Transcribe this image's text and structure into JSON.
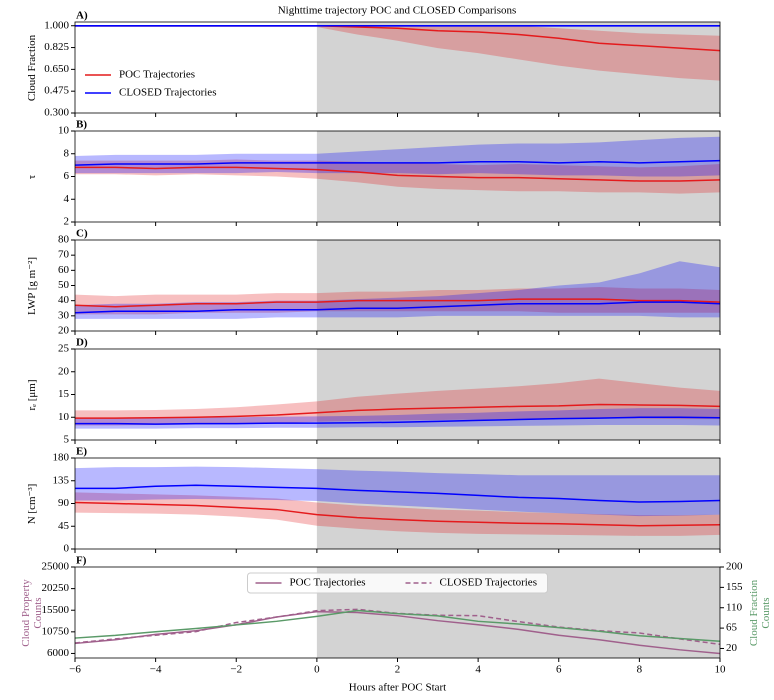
{
  "title": "Nighttime trajectory POC and CLOSED Comparisons",
  "chart_data": [
    {
      "type": "line",
      "label": "A)",
      "ylabel": "Cloud Fraction",
      "legend": "lower left",
      "highlight_xrange": [
        0,
        10
      ],
      "x": [
        -6,
        -5,
        -4,
        -3,
        -2,
        -1,
        0,
        1,
        2,
        3,
        4,
        5,
        6,
        7,
        8,
        9,
        10
      ],
      "xlim": [
        -6,
        10
      ],
      "ylim": [
        0.3,
        1.03
      ],
      "yticks": [
        {
          "value": 0.3,
          "label": "0.300"
        },
        {
          "value": 0.475,
          "label": "0.475"
        },
        {
          "value": 0.65,
          "label": "0.650"
        },
        {
          "value": 0.825,
          "label": "0.825"
        },
        {
          "value": 1.0,
          "label": "1.000"
        }
      ],
      "series": [
        {
          "name": "POC Trajectories",
          "color": "#e41a1c",
          "values": [
            1,
            1,
            1,
            1,
            1,
            1,
            1,
            0.99,
            0.98,
            0.96,
            0.95,
            0.93,
            0.9,
            0.86,
            0.84,
            0.82,
            0.8
          ],
          "lower": [
            0.99,
            0.99,
            0.99,
            0.99,
            0.99,
            0.99,
            0.99,
            0.93,
            0.88,
            0.82,
            0.78,
            0.73,
            0.68,
            0.64,
            0.61,
            0.58,
            0.56
          ],
          "upper": [
            1,
            1,
            1,
            1,
            1,
            1,
            1,
            1,
            1,
            1,
            1,
            1,
            0.98,
            0.96,
            0.94,
            0.93,
            0.92
          ]
        },
        {
          "name": "CLOSED Trajectories",
          "color": "#0000ff",
          "values": [
            1,
            1,
            1,
            1,
            1,
            1,
            1,
            1,
            1,
            1,
            1,
            1,
            1,
            1,
            1,
            1,
            1
          ],
          "lower": [
            0.99,
            0.99,
            0.99,
            0.99,
            0.99,
            0.99,
            0.99,
            0.99,
            0.99,
            0.99,
            0.99,
            0.99,
            0.99,
            0.99,
            0.99,
            0.99,
            0.99
          ],
          "upper": [
            1,
            1,
            1,
            1,
            1,
            1,
            1,
            1,
            1,
            1,
            1,
            1,
            1,
            1,
            1,
            1,
            1
          ]
        }
      ]
    },
    {
      "type": "line",
      "label": "B)",
      "ylabel": "τ",
      "highlight_xrange": [
        0,
        10
      ],
      "x": [
        -6,
        -5,
        -4,
        -3,
        -2,
        -1,
        0,
        1,
        2,
        3,
        4,
        5,
        6,
        7,
        8,
        9,
        10
      ],
      "xlim": [
        -6,
        10
      ],
      "ylim": [
        2,
        10
      ],
      "yticks": [
        2,
        4,
        6,
        8,
        10
      ],
      "series": [
        {
          "color": "#e41a1c",
          "values": [
            6.8,
            6.8,
            6.7,
            6.8,
            6.8,
            6.7,
            6.6,
            6.4,
            6.1,
            6.0,
            5.9,
            5.9,
            5.8,
            5.7,
            5.6,
            5.6,
            5.7
          ],
          "lower": [
            6.2,
            6.2,
            6.1,
            6.2,
            6.1,
            6.0,
            5.8,
            5.5,
            5.1,
            4.9,
            4.8,
            4.7,
            4.7,
            4.6,
            4.6,
            4.5,
            4.6
          ],
          "upper": [
            7.4,
            7.4,
            7.4,
            7.4,
            7.5,
            7.4,
            7.4,
            7.3,
            7.2,
            7.1,
            7.0,
            7.1,
            7.0,
            6.9,
            6.8,
            6.9,
            7.1
          ]
        },
        {
          "color": "#0000ff",
          "values": [
            7.0,
            7.1,
            7.1,
            7.1,
            7.2,
            7.2,
            7.2,
            7.2,
            7.2,
            7.2,
            7.3,
            7.3,
            7.2,
            7.3,
            7.2,
            7.3,
            7.4
          ],
          "lower": [
            6.3,
            6.3,
            6.3,
            6.3,
            6.3,
            6.4,
            6.3,
            6.3,
            6.3,
            6.2,
            6.3,
            6.2,
            6.1,
            6.1,
            6.0,
            6.0,
            6.1
          ],
          "upper": [
            7.8,
            7.9,
            7.9,
            7.9,
            8.0,
            8.0,
            8.0,
            8.2,
            8.4,
            8.6,
            8.8,
            8.9,
            8.9,
            9.0,
            9.2,
            9.4,
            9.5
          ]
        }
      ]
    },
    {
      "type": "line",
      "label": "C)",
      "ylabel": "LWP [g m⁻²]",
      "highlight_xrange": [
        0,
        10
      ],
      "x": [
        -6,
        -5,
        -4,
        -3,
        -2,
        -1,
        0,
        1,
        2,
        3,
        4,
        5,
        6,
        7,
        8,
        9,
        10
      ],
      "xlim": [
        -6,
        10
      ],
      "ylim": [
        20,
        80
      ],
      "yticks": [
        20,
        30,
        40,
        50,
        60,
        70,
        80
      ],
      "series": [
        {
          "color": "#e41a1c",
          "values": [
            37,
            36,
            37,
            38,
            38,
            39,
            39,
            40,
            40,
            40,
            40,
            41,
            41,
            41,
            40,
            40,
            39
          ],
          "lower": [
            31,
            31,
            31,
            32,
            32,
            32,
            33,
            33,
            33,
            33,
            33,
            33,
            32,
            32,
            32,
            32,
            32
          ],
          "upper": [
            44,
            43,
            44,
            44,
            44,
            45,
            45,
            46,
            46,
            47,
            47,
            48,
            48,
            49,
            48,
            48,
            47
          ]
        },
        {
          "color": "#0000ff",
          "values": [
            32,
            33,
            33,
            33,
            34,
            34,
            34,
            35,
            35,
            36,
            37,
            38,
            38,
            38,
            39,
            39,
            38
          ],
          "lower": [
            28,
            28,
            28,
            28,
            28,
            29,
            29,
            29,
            29,
            30,
            30,
            30,
            30,
            30,
            30,
            29,
            29
          ],
          "upper": [
            37,
            38,
            38,
            39,
            39,
            40,
            40,
            41,
            42,
            43,
            45,
            47,
            50,
            52,
            58,
            66,
            62
          ]
        }
      ]
    },
    {
      "type": "line",
      "label": "D)",
      "ylabel": "rₑ [μm]",
      "highlight_xrange": [
        0,
        10
      ],
      "x": [
        -6,
        -5,
        -4,
        -3,
        -2,
        -1,
        0,
        1,
        2,
        3,
        4,
        5,
        6,
        7,
        8,
        9,
        10
      ],
      "xlim": [
        -6,
        10
      ],
      "ylim": [
        5,
        25
      ],
      "yticks": [
        5,
        10,
        15,
        20,
        25
      ],
      "series": [
        {
          "color": "#e41a1c",
          "values": [
            9.8,
            9.8,
            9.9,
            10.0,
            10.2,
            10.5,
            11.0,
            11.5,
            11.8,
            12.0,
            12.2,
            12.4,
            12.5,
            12.8,
            12.7,
            12.6,
            12.4
          ],
          "lower": [
            8.2,
            8.2,
            8.3,
            8.4,
            8.5,
            8.7,
            9.0,
            9.2,
            9.3,
            9.4,
            9.5,
            9.6,
            9.7,
            9.8,
            9.7,
            9.6,
            9.6
          ],
          "upper": [
            11.5,
            11.5,
            11.6,
            11.8,
            12.2,
            12.8,
            13.5,
            14.5,
            15.2,
            15.8,
            16.3,
            16.8,
            17.5,
            18.5,
            17.5,
            16.5,
            15.8
          ]
        },
        {
          "color": "#0000ff",
          "values": [
            8.6,
            8.6,
            8.5,
            8.6,
            8.6,
            8.7,
            8.7,
            8.8,
            8.9,
            9.1,
            9.3,
            9.5,
            9.7,
            9.8,
            10.0,
            10.0,
            9.9
          ],
          "lower": [
            7.5,
            7.5,
            7.5,
            7.6,
            7.6,
            7.7,
            7.7,
            7.8,
            7.8,
            7.9,
            8.0,
            8.1,
            8.2,
            8.3,
            8.3,
            8.3,
            8.2
          ],
          "upper": [
            9.8,
            9.8,
            9.8,
            9.9,
            10.0,
            10.1,
            10.2,
            10.3,
            10.5,
            10.8,
            11.0,
            11.3,
            11.5,
            11.8,
            12.0,
            12.0,
            11.8
          ]
        }
      ]
    },
    {
      "type": "line",
      "label": "E)",
      "ylabel": "N [cm⁻³]",
      "highlight_xrange": [
        0,
        10
      ],
      "x": [
        -6,
        -5,
        -4,
        -3,
        -2,
        -1,
        0,
        1,
        2,
        3,
        4,
        5,
        6,
        7,
        8,
        9,
        10
      ],
      "xlim": [
        -6,
        10
      ],
      "ylim": [
        0,
        180
      ],
      "yticks": [
        0,
        45,
        90,
        135,
        180
      ],
      "series": [
        {
          "color": "#e41a1c",
          "values": [
            92,
            90,
            88,
            86,
            82,
            78,
            68,
            62,
            58,
            55,
            53,
            51,
            50,
            48,
            46,
            47,
            48
          ],
          "lower": [
            72,
            71,
            70,
            68,
            64,
            58,
            46,
            40,
            35,
            32,
            30,
            29,
            28,
            27,
            26,
            26,
            28
          ],
          "upper": [
            112,
            110,
            108,
            106,
            103,
            100,
            92,
            86,
            82,
            78,
            76,
            73,
            71,
            69,
            67,
            67,
            68
          ]
        },
        {
          "color": "#0000ff",
          "values": [
            120,
            120,
            124,
            126,
            124,
            122,
            120,
            116,
            113,
            110,
            106,
            102,
            100,
            96,
            93,
            94,
            96
          ],
          "lower": [
            96,
            96,
            98,
            99,
            98,
            97,
            95,
            90,
            86,
            82,
            78,
            74,
            71,
            68,
            65,
            66,
            68
          ],
          "upper": [
            160,
            162,
            162,
            163,
            162,
            160,
            158,
            155,
            153,
            150,
            148,
            146,
            146,
            146,
            146,
            146,
            146
          ]
        }
      ]
    },
    {
      "type": "line",
      "label": "F)",
      "ylabel": "Cloud Property Counts",
      "ylabel_color": "#a0608c",
      "y2label": "Cloud Fraction Counts",
      "y2label_color": "#5a9a68",
      "legend": "upper center",
      "highlight_xrange": [
        0,
        10
      ],
      "xlabel": "Hours after POC Start",
      "x": [
        -6,
        -5,
        -4,
        -3,
        -2,
        -1,
        0,
        1,
        2,
        3,
        4,
        5,
        6,
        7,
        8,
        9,
        10
      ],
      "xlim": [
        -6,
        10
      ],
      "xticks": [
        {
          "value": -6,
          "label": "−6"
        },
        {
          "value": -4,
          "label": "−4"
        },
        {
          "value": -2,
          "label": "−2"
        },
        0,
        2,
        4,
        6,
        8,
        10
      ],
      "ylim": [
        5000,
        25000
      ],
      "yticks": [
        6000,
        10750,
        15500,
        20250,
        25000
      ],
      "y2lim": [
        -1.05,
        200
      ],
      "y2ticks": [
        20,
        65,
        110,
        155,
        200
      ],
      "series": [
        {
          "name": "POC Trajectories",
          "color": "#a0608c",
          "dash": "solid",
          "values": [
            8200,
            9000,
            10200,
            11000,
            12300,
            14000,
            15200,
            15000,
            14300,
            13200,
            12300,
            11300,
            10000,
            9000,
            7800,
            6800,
            6000
          ]
        },
        {
          "name": "CLOSED Trajectories",
          "color": "#a0608c",
          "dash": "dashed",
          "values": [
            8300,
            9200,
            10000,
            10800,
            12800,
            14000,
            15400,
            15700,
            14800,
            14400,
            14300,
            13000,
            11800,
            11000,
            10500,
            9200,
            8000
          ]
        },
        {
          "color": "#5a9a68",
          "dash": "solid",
          "axis": "y2",
          "values": [
            43,
            49,
            57,
            64,
            72,
            80,
            91,
            104,
            97,
            92,
            80,
            74,
            66,
            58,
            48,
            42,
            36
          ]
        }
      ]
    }
  ]
}
